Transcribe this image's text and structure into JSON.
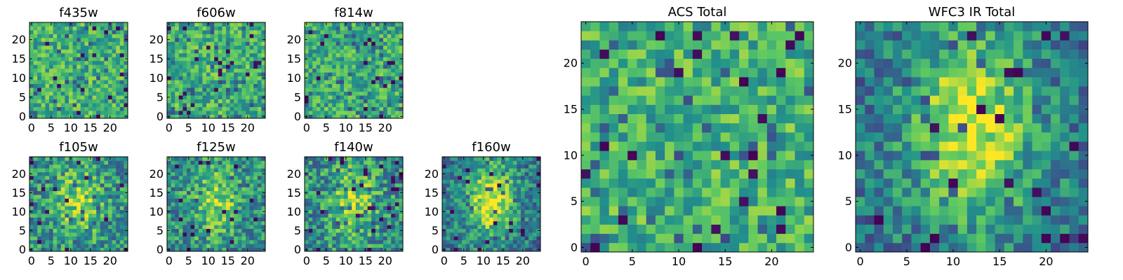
{
  "figure": {
    "colormap": [
      "#440154",
      "#3b528b",
      "#21918c",
      "#5ec962",
      "#fde725"
    ]
  },
  "chart_data": [
    {
      "type": "heatmap",
      "title": "f435w",
      "grid_size": 25,
      "xticks": [
        "0",
        "5",
        "10",
        "15",
        "20"
      ],
      "yticks": [
        "0",
        "5",
        "10",
        "15",
        "20"
      ],
      "pattern": "noise",
      "seed": 11
    },
    {
      "type": "heatmap",
      "title": "f606w",
      "grid_size": 25,
      "xticks": [
        "0",
        "5",
        "10",
        "15",
        "20"
      ],
      "yticks": [
        "0",
        "5",
        "10",
        "15",
        "20"
      ],
      "pattern": "noise",
      "seed": 23
    },
    {
      "type": "heatmap",
      "title": "f814w",
      "grid_size": 25,
      "xticks": [
        "0",
        "5",
        "10",
        "15",
        "20"
      ],
      "yticks": [
        "0",
        "5",
        "10",
        "15",
        "20"
      ],
      "pattern": "noise-ring",
      "seed": 37
    },
    {
      "type": "heatmap",
      "title": "f105w",
      "grid_size": 25,
      "xticks": [
        "0",
        "5",
        "10",
        "15",
        "20"
      ],
      "yticks": [
        "0",
        "5",
        "10",
        "15",
        "20"
      ],
      "pattern": "blob",
      "seed": 41
    },
    {
      "type": "heatmap",
      "title": "f125w",
      "grid_size": 25,
      "xticks": [
        "0",
        "5",
        "10",
        "15",
        "20"
      ],
      "yticks": [
        "0",
        "5",
        "10",
        "15",
        "20"
      ],
      "pattern": "blob",
      "seed": 53
    },
    {
      "type": "heatmap",
      "title": "f140w",
      "grid_size": 25,
      "xticks": [
        "0",
        "5",
        "10",
        "15",
        "20"
      ],
      "yticks": [
        "0",
        "5",
        "10",
        "15",
        "20"
      ],
      "pattern": "blob",
      "seed": 67
    },
    {
      "type": "heatmap",
      "title": "f160w",
      "grid_size": 25,
      "xticks": [
        "0",
        "5",
        "10",
        "15",
        "20"
      ],
      "yticks": [
        "0",
        "5",
        "10",
        "15",
        "20"
      ],
      "pattern": "blob-strong",
      "seed": 79
    },
    {
      "type": "heatmap",
      "title": "ACS Total",
      "grid_size": 25,
      "xticks": [
        "0",
        "5",
        "10",
        "15",
        "20"
      ],
      "yticks": [
        "0",
        "5",
        "10",
        "15",
        "20"
      ],
      "pattern": "noise",
      "seed": 97
    },
    {
      "type": "heatmap",
      "title": "WFC3 IR Total",
      "grid_size": 25,
      "xticks": [
        "0",
        "5",
        "10",
        "15",
        "20"
      ],
      "yticks": [
        "0",
        "5",
        "10",
        "15",
        "20"
      ],
      "pattern": "blob-strong",
      "seed": 113
    }
  ]
}
